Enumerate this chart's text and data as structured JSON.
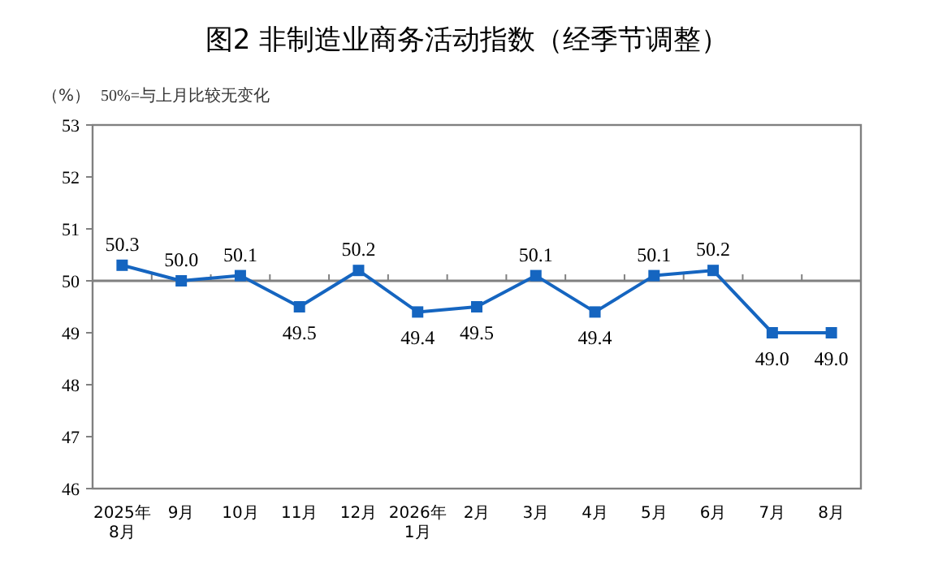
{
  "chart_data": {
    "type": "line",
    "title": "图2  非制造业商务活动指数（经季节调整）",
    "ylabel": "（%）",
    "annotations": [
      "50%=与上月比较无变化"
    ],
    "categories": [
      "2025年\n8月",
      "9月",
      "10月",
      "11月",
      "12月",
      "2026年\n1月",
      "2月",
      "3月",
      "4月",
      "5月",
      "6月",
      "7月",
      "8月"
    ],
    "series": [
      {
        "color": "#1565c0",
        "values": [
          50.3,
          50.0,
          50.1,
          49.5,
          50.2,
          49.4,
          49.5,
          50.1,
          49.4,
          50.1,
          50.2,
          49.0,
          49.0
        ],
        "value_labels": [
          "50.3",
          "50.0",
          "50.1",
          "49.5",
          "50.2",
          "49.4",
          "49.5",
          "50.1",
          "49.4",
          "50.1",
          "50.2",
          "49.0",
          "49.0"
        ]
      }
    ],
    "ylim": [
      46,
      53
    ],
    "yticks": [
      46,
      47,
      48,
      49,
      50,
      51,
      52,
      53
    ],
    "ref_lines": [
      {
        "axis": "y",
        "value": 50,
        "color": "#808080"
      }
    ],
    "marker": "square",
    "line_style": "solid",
    "grid": false
  }
}
